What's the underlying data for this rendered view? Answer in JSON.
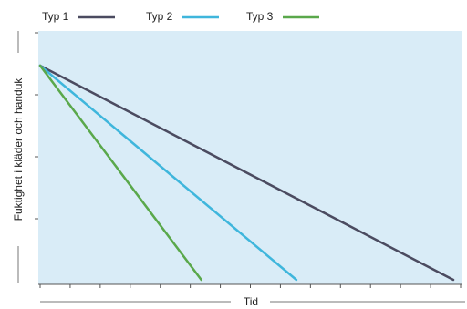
{
  "chart_data": {
    "type": "line",
    "xlabel": "Tid",
    "ylabel": "Fuktighet i kläder och handuk",
    "xlim": [
      0,
      10
    ],
    "ylim": [
      0,
      10
    ],
    "grid": false,
    "legend": "top-left",
    "plot_background": "#d9ecf7",
    "series": [
      {
        "name": "Typ 1",
        "color": "#4b4b60",
        "x": [
          0,
          10
        ],
        "y": [
          8,
          0
        ]
      },
      {
        "name": "Typ 2",
        "color": "#3fb6dc",
        "x": [
          0,
          6.2
        ],
        "y": [
          8,
          0
        ]
      },
      {
        "name": "Typ 3",
        "color": "#5aa84b",
        "x": [
          0,
          3.9
        ],
        "y": [
          8,
          0
        ]
      }
    ]
  }
}
